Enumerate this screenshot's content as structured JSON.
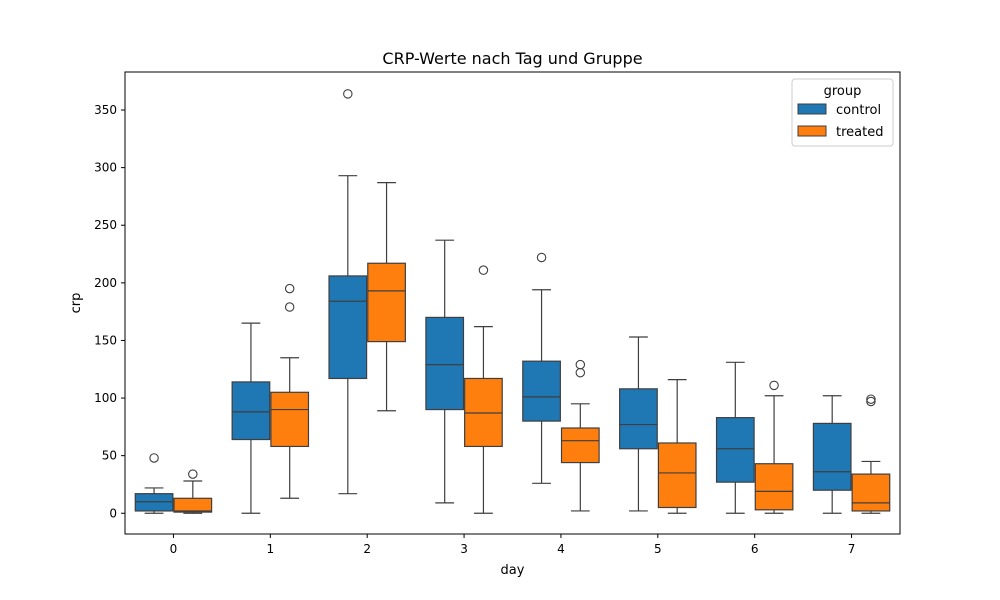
{
  "chart_data": {
    "type": "box",
    "title": "CRP-Werte nach Tag und Gruppe",
    "xlabel": "day",
    "ylabel": "crp",
    "categories": [
      "0",
      "1",
      "2",
      "3",
      "4",
      "5",
      "6",
      "7"
    ],
    "ylim": [
      -18,
      383
    ],
    "yticks": [
      0,
      50,
      100,
      150,
      200,
      250,
      300,
      350
    ],
    "grid": false,
    "legend": {
      "title": "group",
      "placement": "top-right"
    },
    "series": [
      {
        "name": "control",
        "color": "#1f77b4",
        "boxes": [
          {
            "whislo": 0,
            "q1": 2,
            "med": 10,
            "q3": 17,
            "whishi": 22,
            "fliers": [
              48
            ]
          },
          {
            "whislo": 0,
            "q1": 64,
            "med": 88,
            "q3": 114,
            "whishi": 165,
            "fliers": []
          },
          {
            "whislo": 17,
            "q1": 117,
            "med": 184,
            "q3": 206,
            "whishi": 293,
            "fliers": [
              364
            ]
          },
          {
            "whislo": 9,
            "q1": 90,
            "med": 129,
            "q3": 170,
            "whishi": 237,
            "fliers": []
          },
          {
            "whislo": 26,
            "q1": 80,
            "med": 101,
            "q3": 132,
            "whishi": 194,
            "fliers": [
              222
            ]
          },
          {
            "whislo": 2,
            "q1": 56,
            "med": 77,
            "q3": 108,
            "whishi": 153,
            "fliers": []
          },
          {
            "whislo": 0,
            "q1": 27,
            "med": 56,
            "q3": 83,
            "whishi": 131,
            "fliers": []
          },
          {
            "whislo": 0,
            "q1": 20,
            "med": 36,
            "q3": 78,
            "whishi": 102,
            "fliers": []
          }
        ]
      },
      {
        "name": "treated",
        "color": "#ff7f0e",
        "boxes": [
          {
            "whislo": 0,
            "q1": 1,
            "med": 2,
            "q3": 13,
            "whishi": 28,
            "fliers": [
              34
            ]
          },
          {
            "whislo": 13,
            "q1": 58,
            "med": 90,
            "q3": 105,
            "whishi": 135,
            "fliers": [
              179,
              195
            ]
          },
          {
            "whislo": 89,
            "q1": 149,
            "med": 193,
            "q3": 217,
            "whishi": 287,
            "fliers": []
          },
          {
            "whislo": 0,
            "q1": 58,
            "med": 87,
            "q3": 117,
            "whishi": 162,
            "fliers": [
              211
            ]
          },
          {
            "whislo": 2,
            "q1": 44,
            "med": 63,
            "q3": 74,
            "whishi": 95,
            "fliers": [
              122,
              129
            ]
          },
          {
            "whislo": 0,
            "q1": 5,
            "med": 35,
            "q3": 61,
            "whishi": 116,
            "fliers": []
          },
          {
            "whislo": 0,
            "q1": 3,
            "med": 19,
            "q3": 43,
            "whishi": 102,
            "fliers": [
              111
            ]
          },
          {
            "whislo": 0,
            "q1": 2,
            "med": 9,
            "q3": 34,
            "whishi": 45,
            "fliers": [
              97,
              99
            ]
          }
        ]
      }
    ]
  }
}
